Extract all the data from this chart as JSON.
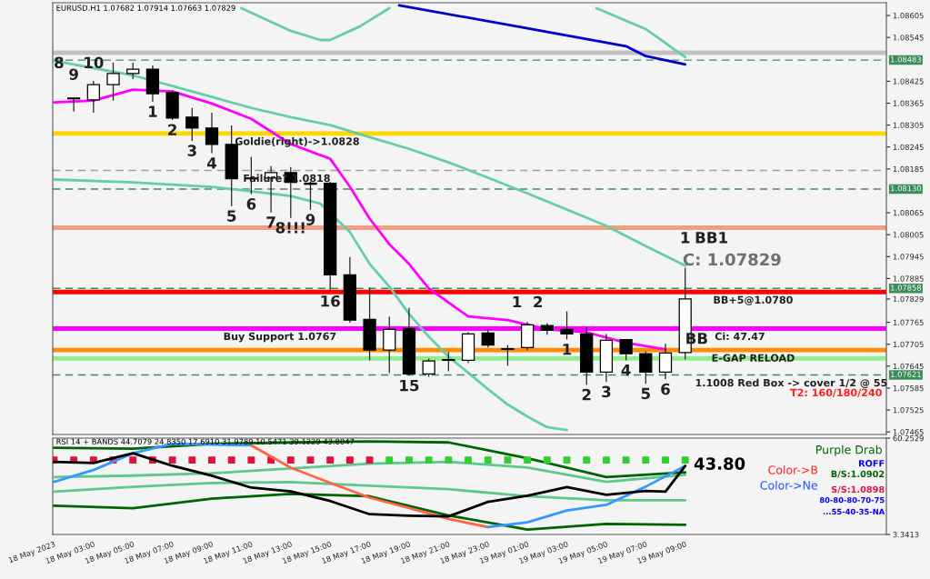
{
  "chart_data": [
    {
      "type": "candlestick",
      "x": [
        "2023-05-18T02:00",
        "2023-05-18T03:00",
        "2023-05-18T04:00",
        "2023-05-18T05:00",
        "2023-05-18T06:00",
        "2023-05-18T07:00",
        "2023-05-18T08:00",
        "2023-05-18T09:00",
        "2023-05-18T10:00",
        "2023-05-18T11:00",
        "2023-05-18T12:00",
        "2023-05-18T13:00",
        "2023-05-18T14:00",
        "2023-05-18T15:00",
        "2023-05-18T16:00",
        "2023-05-18T17:00",
        "2023-05-18T18:00",
        "2023-05-18T19:00",
        "2023-05-18T20:00",
        "2023-05-18T21:00",
        "2023-05-18T22:00",
        "2023-05-18T23:00",
        "2023-05-19T00:00",
        "2023-05-19T01:00",
        "2023-05-19T02:00",
        "2023-05-19T03:00",
        "2023-05-19T04:00",
        "2023-05-19T05:00",
        "2023-05-19T06:00",
        "2023-05-19T07:00",
        "2023-05-19T08:00",
        "2023-05-19T09:00"
      ],
      "ohlc": [
        [
          1.08379,
          1.0838,
          1.08342,
          1.08377
        ],
        [
          1.08374,
          1.08426,
          1.08339,
          1.08416
        ],
        [
          1.08416,
          1.08476,
          1.08372,
          1.08446
        ],
        [
          1.08446,
          1.08476,
          1.08431,
          1.08458
        ],
        [
          1.08458,
          1.08468,
          1.08369,
          1.08391
        ],
        [
          1.08394,
          1.08399,
          1.08319,
          1.08324
        ],
        [
          1.08327,
          1.08352,
          1.08262,
          1.08297
        ],
        [
          1.08297,
          1.08339,
          1.08228,
          1.08252
        ],
        [
          1.08252,
          1.08304,
          1.08083,
          1.08158
        ],
        [
          1.0816,
          1.08218,
          1.08116,
          1.08158
        ],
        [
          1.0816,
          1.08193,
          1.08066,
          1.08175
        ],
        [
          1.08175,
          1.0819,
          1.08051,
          1.08148
        ],
        [
          1.08146,
          1.0815,
          1.08073,
          1.08143
        ],
        [
          1.08146,
          1.0815,
          1.0785,
          1.07895
        ],
        [
          1.07895,
          1.07944,
          1.07764,
          1.07771
        ],
        [
          1.07773,
          1.0786,
          1.07661,
          1.07689
        ],
        [
          1.07689,
          1.0778,
          1.07626,
          1.07746
        ],
        [
          1.07748,
          1.07805,
          1.07619,
          1.07624
        ],
        [
          1.07624,
          1.07666,
          1.07616,
          1.07659
        ],
        [
          1.07661,
          1.07684,
          1.07631,
          1.07663
        ],
        [
          1.07661,
          1.07738,
          1.07654,
          1.07733
        ],
        [
          1.07736,
          1.07746,
          1.07696,
          1.07703
        ],
        [
          1.07691,
          1.07703,
          1.07646,
          1.07693
        ],
        [
          1.07696,
          1.07766,
          1.07689,
          1.07758
        ],
        [
          1.07756,
          1.07763,
          1.07731,
          1.07743
        ],
        [
          1.07746,
          1.07795,
          1.07718,
          1.07733
        ],
        [
          1.07733,
          1.07753,
          1.07594,
          1.07629
        ],
        [
          1.07629,
          1.07733,
          1.07602,
          1.07716
        ],
        [
          1.07718,
          1.07718,
          1.07661,
          1.07679
        ],
        [
          1.07679,
          1.07686,
          1.07597,
          1.07629
        ],
        [
          1.07629,
          1.07706,
          1.07609,
          1.07681
        ],
        [
          1.07682,
          1.07914,
          1.07663,
          1.07829
        ]
      ],
      "series": [
        {
          "type": "line",
          "color": "#ff00ff",
          "x": [
            "2023-05-18T01:00",
            "2023-05-18T03:00",
            "2023-05-18T05:00",
            "2023-05-18T07:00",
            "2023-05-18T09:00",
            "2023-05-18T11:00",
            "2023-05-18T13:00",
            "2023-05-18T15:00",
            "2023-05-18T16:00",
            "2023-05-18T17:00",
            "2023-05-18T18:00",
            "2023-05-18T19:00",
            "2023-05-18T20:00",
            "2023-05-18T22:00",
            "2023-05-19T00:00",
            "2023-05-19T02:00",
            "2023-05-19T04:00",
            "2023-05-19T06:00",
            "2023-05-19T08:00"
          ],
          "values": [
            1.08367,
            1.08372,
            1.08402,
            1.08397,
            1.08364,
            1.08322,
            1.08253,
            1.08213,
            1.08136,
            1.08049,
            1.07979,
            1.07925,
            1.07858,
            1.07781,
            1.07771,
            1.07746,
            1.07738,
            1.07709,
            1.07691
          ]
        },
        {
          "type": "line",
          "color": "#66ccaa",
          "x": [
            "2023-05-18T01:00",
            "2023-05-18T03:00",
            "2023-05-18T05:00",
            "2023-05-18T07:00",
            "2023-05-18T09:00",
            "2023-05-18T11:00",
            "2023-05-18T13:00",
            "2023-05-18T15:00",
            "2023-05-18T17:00",
            "2023-05-18T19:00",
            "2023-05-18T21:00",
            "2023-05-18T23:00",
            "2023-05-19T01:00",
            "2023-05-19T03:00",
            "2023-05-19T05:00",
            "2023-05-19T07:00",
            "2023-05-19T09:00"
          ],
          "values": [
            1.08481,
            1.08461,
            1.08441,
            1.08412,
            1.08382,
            1.08352,
            1.08327,
            1.08305,
            1.08272,
            1.0824,
            1.08203,
            1.08161,
            1.08118,
            1.08074,
            1.08029,
            1.07974,
            1.0792
          ]
        },
        {
          "type": "line",
          "color": "#66ccaa",
          "x": [
            "2023-05-18T01:00",
            "2023-05-18T05:00",
            "2023-05-18T09:00",
            "2023-05-18T13:00",
            "2023-05-18T14:30",
            "2023-05-18T16:00",
            "2023-05-18T17:00",
            "2023-05-18T18:00",
            "2023-05-18T19:00",
            "2023-05-18T20:00",
            "2023-05-18T21:00",
            "2023-05-18T22:00",
            "2023-05-18T23:00",
            "2023-05-19T00:00",
            "2023-05-19T01:00",
            "2023-05-19T02:00",
            "2023-05-19T03:00"
          ],
          "values": [
            1.08156,
            1.08148,
            1.08136,
            1.08111,
            1.0809,
            1.08012,
            1.07925,
            1.07863,
            1.07788,
            1.07726,
            1.07671,
            1.07627,
            1.07582,
            1.0754,
            1.07507,
            1.07478,
            1.0747
          ]
        },
        {
          "type": "line",
          "color": "#66ccaa",
          "x": [
            "2023-05-18T10:30",
            "2023-05-18T13:00",
            "2023-05-18T14:30",
            "2023-05-18T15:00",
            "2023-05-18T16:30",
            "2023-05-18T18:00",
            "2023-05-19T03:00",
            "2023-05-19T04:30",
            "2023-05-19T07:00",
            "2023-05-19T09:00"
          ],
          "values": [
            1.08625,
            1.08563,
            1.08538,
            1.08538,
            1.08575,
            1.08625,
            null,
            1.08625,
            1.08568,
            1.08491
          ]
        },
        {
          "type": "line",
          "color": "#0000cc",
          "x": [
            "2023-05-18T18:30",
            "2023-05-19T01:00",
            "2023-05-19T06:00",
            "2023-05-19T07:00",
            "2023-05-19T09:00"
          ],
          "values": [
            1.08633,
            1.0857,
            1.08521,
            1.08494,
            1.08471
          ]
        }
      ],
      "xlim": [
        "2023-05-18T00:56",
        "2023-05-19T19:12"
      ],
      "ylim": [
        1.07458,
        1.0864
      ],
      "yticks": [
        1.08605,
        1.08545,
        1.08425,
        1.08365,
        1.08305,
        1.08245,
        1.08185,
        1.08065,
        1.08005,
        1.07945,
        1.07885,
        1.07829,
        1.07765,
        1.07705,
        1.07645,
        1.07585,
        1.07525,
        1.07465
      ],
      "tick_labels": "y",
      "ref_lines": [
        {
          "axis": "y",
          "value": 1.08503,
          "color": "#c0c0c0",
          "line_style": "solid"
        },
        {
          "axis": "y",
          "value": 1.08483,
          "label": "1.08483",
          "color": "#3c8c5a",
          "line_style": "dashed"
        },
        {
          "axis": "y",
          "value": 1.08282,
          "color": "#ffd700",
          "line_style": "solid"
        },
        {
          "axis": "y",
          "value": 1.08181,
          "color": "#a0a0a0",
          "line_style": "dashed"
        },
        {
          "axis": "y",
          "value": 1.0813,
          "label": "1.08130",
          "color": "#3c8c5a",
          "line_style": "dashed"
        },
        {
          "axis": "y",
          "value": 1.08024,
          "color": "#f0a080",
          "line_style": "solid"
        },
        {
          "axis": "y",
          "value": 1.07858,
          "label": "1.07858",
          "color": "#3c8c5a",
          "line_style": "dashed"
        },
        {
          "axis": "y",
          "value": 1.07848,
          "color": "#ff0000",
          "line_style": "solid"
        },
        {
          "axis": "y",
          "value": 1.07748,
          "color": "#ff00ff",
          "line_style": "solid"
        },
        {
          "axis": "y",
          "value": 1.07689,
          "color": "#ff8c00",
          "line_style": "solid"
        },
        {
          "axis": "y",
          "value": 1.07666,
          "color": "#90ee90",
          "line_style": "solid"
        },
        {
          "axis": "y",
          "value": 1.07621,
          "label": "1.07621",
          "color": "#3c8c5a",
          "line_style": "dashed"
        }
      ],
      "annotations": [
        "EURUSD.H1 1.07682 1.07914 1.07663 1.07829",
        {
          "text": "8",
          "x": "2023-05-18T01:15",
          "y": 1.08503
        },
        {
          "text": "10",
          "x": "2023-05-18T03:00",
          "y": 1.08503
        },
        {
          "text": "9",
          "x": "2023-05-18T02:00",
          "y": 1.08471
        },
        {
          "text": "1",
          "x": "2023-05-18T06:00",
          "y": 1.08369
        },
        {
          "text": "2",
          "x": "2023-05-18T07:00",
          "y": 1.08319
        },
        {
          "text": "3",
          "x": "2023-05-18T08:00",
          "y": 1.08262
        },
        {
          "text": "4",
          "x": "2023-05-18T09:00",
          "y": 1.08228
        },
        {
          "text": "5",
          "x": "2023-05-18T10:00",
          "y": 1.08083
        },
        {
          "text": "6",
          "x": "2023-05-18T11:00",
          "y": 1.08116
        },
        {
          "text": "7",
          "x": "2023-05-18T12:00",
          "y": 1.08066
        },
        {
          "text": "8!!!",
          "x": "2023-05-18T13:00",
          "y": 1.08051
        },
        {
          "text": "9",
          "x": "2023-05-18T14:00",
          "y": 1.08073
        },
        {
          "text": "Goldie(right)->1.0828",
          "x": "2023-05-18T10:10",
          "y": 1.08282
        },
        {
          "text": "Failure? 1.0818",
          "x": "2023-05-18T10:35",
          "y": 1.08181
        },
        {
          "text": "Buy Support 1.0767",
          "x": "2023-05-18T09:35",
          "y": 1.07748
        },
        {
          "text": "16",
          "x": "2023-05-18T15:00",
          "y": 1.0785
        },
        {
          "text": "15",
          "x": "2023-05-18T19:00",
          "y": 1.07619
        },
        {
          "text": "1  2",
          "x": "2023-05-19T01:00",
          "y": 1.07848
        },
        {
          "text": "1",
          "x": "2023-05-19T03:00",
          "y": 1.07718
        },
        {
          "text": "2",
          "x": "2023-05-19T04:00",
          "y": 1.07594
        },
        {
          "text": "3",
          "x": "2023-05-19T05:00",
          "y": 1.07602
        },
        {
          "text": "4",
          "x": "2023-05-19T06:00",
          "y": 1.07661
        },
        {
          "text": "5",
          "x": "2023-05-19T07:00",
          "y": 1.07597
        },
        {
          "text": "6",
          "x": "2023-05-19T08:00",
          "y": 1.07609
        },
        {
          "text": "1",
          "x": "2023-05-19T09:00",
          "y": 1.08024
        },
        {
          "text": "BB1",
          "x": "2023-05-19T10:20",
          "y": 1.08024
        },
        "C: 1.07829",
        {
          "text": "BB+5@1.0780",
          "x": "2023-05-19T10:25",
          "y": 1.07848
        },
        {
          "text": "Ci: 47.47",
          "x": "2023-05-19T10:30",
          "y": 1.07748
        },
        {
          "text": "BB",
          "x": "2023-05-19T09:35",
          "y": 1.07748
        },
        {
          "text": "E-GAP RELOAD",
          "x": "2023-05-19T10:20",
          "y": 1.07689
        },
        {
          "text": "1.1008 Red Box -> cover 1/2 @ 55",
          "x": "2023-05-19T09:30",
          "y": 1.07621
        },
        "T2: 160/180/240"
      ]
    },
    {
      "type": "line",
      "series": [
        {
          "color": "#006400",
          "x": [
            "2023-05-18T01:00",
            "2023-05-18T05:00",
            "2023-05-18T09:00",
            "2023-05-18T13:00",
            "2023-05-18T17:00",
            "2023-05-18T21:00",
            "2023-05-19T01:00",
            "2023-05-19T05:00",
            "2023-05-19T09:00"
          ],
          "values": [
            54.6,
            54.0,
            56.9,
            57.7,
            58.3,
            57.7,
            48.4,
            37.2,
            40.0
          ]
        },
        {
          "color": "#006400",
          "x": [
            "2023-05-18T01:00",
            "2023-05-18T05:00",
            "2023-05-18T09:00",
            "2023-05-18T13:00",
            "2023-05-18T17:00",
            "2023-05-18T21:00",
            "2023-05-19T01:00",
            "2023-05-19T05:00",
            "2023-05-19T09:00"
          ],
          "values": [
            20.3,
            18.9,
            24.5,
            27.3,
            25.9,
            14.6,
            6.2,
            9.6,
            9.0
          ]
        },
        {
          "color": "#5cc98a",
          "x": [
            "2023-05-18T01:00",
            "2023-05-18T05:00",
            "2023-05-18T09:00",
            "2023-05-18T13:00",
            "2023-05-18T17:00",
            "2023-05-18T21:00",
            "2023-05-19T01:00",
            "2023-05-19T05:00",
            "2023-05-19T09:00"
          ],
          "values": [
            37.2,
            38.1,
            39.5,
            42.3,
            45.1,
            46.2,
            42.9,
            34.4,
            38.6
          ]
        },
        {
          "color": "#5cc98a",
          "x": [
            "2023-05-18T01:00",
            "2023-05-18T05:00",
            "2023-05-18T09:00",
            "2023-05-18T13:00",
            "2023-05-18T17:00",
            "2023-05-18T21:00",
            "2023-05-19T01:00",
            "2023-05-19T05:00",
            "2023-05-19T09:00"
          ],
          "values": [
            28.7,
            31.5,
            33.8,
            34.3,
            32.1,
            30.1,
            25.9,
            23.6,
            23.6
          ]
        },
        {
          "type": "scatter",
          "marker": "square",
          "color": "#dc143c",
          "x": [
            "2023-05-18T01:00",
            "2023-05-18T02:00",
            "2023-05-18T03:00",
            "2023-05-18T04:00",
            "2023-05-18T05:00",
            "2023-05-18T06:00",
            "2023-05-18T07:00",
            "2023-05-18T08:00",
            "2023-05-18T09:00",
            "2023-05-18T10:00",
            "2023-05-18T11:00",
            "2023-05-18T12:00",
            "2023-05-18T13:00",
            "2023-05-18T14:00",
            "2023-05-18T15:00",
            "2023-05-18T16:00",
            "2023-05-18T17:00"
          ],
          "values": [
            47.3,
            47.3,
            47.3,
            47.3,
            47.3,
            47.3,
            47.3,
            47.3,
            47.3,
            47.3,
            47.3,
            47.3,
            47.3,
            47.3,
            47.3,
            47.3,
            47.3
          ]
        },
        {
          "type": "scatter",
          "marker": "square",
          "color": "#32cd32",
          "x": [
            "2023-05-18T18:00",
            "2023-05-18T19:00",
            "2023-05-18T20:00",
            "2023-05-18T21:00",
            "2023-05-18T22:00",
            "2023-05-18T23:00",
            "2023-05-19T00:00",
            "2023-05-19T01:00",
            "2023-05-19T02:00",
            "2023-05-19T03:00",
            "2023-05-19T04:00",
            "2023-05-19T05:00",
            "2023-05-19T06:00",
            "2023-05-19T07:00",
            "2023-05-19T08:00",
            "2023-05-19T09:00"
          ],
          "values": [
            47.3,
            47.3,
            47.3,
            47.3,
            47.3,
            47.3,
            47.3,
            47.3,
            47.3,
            47.3,
            47.3,
            47.3,
            47.3,
            47.3,
            47.3,
            47.3
          ]
        },
        {
          "color": "#3399ff",
          "x": [
            "2023-05-18T01:00",
            "2023-05-18T03:00",
            "2023-05-18T05:00",
            "2023-05-18T07:00",
            "2023-05-18T09:00",
            "2023-05-18T11:00"
          ],
          "values": [
            34.4,
            41.4,
            51.3,
            56.9,
            56.4,
            56.0
          ]
        },
        {
          "color": "#ff6347",
          "x": [
            "2023-05-18T11:00",
            "2023-05-18T13:00",
            "2023-05-18T15:00",
            "2023-05-18T17:00",
            "2023-05-18T19:00",
            "2023-05-18T21:00",
            "2023-05-18T23:00"
          ],
          "values": [
            56.0,
            42.8,
            33.8,
            25.1,
            18.9,
            12.5,
            7.7
          ]
        },
        {
          "color": "#3399ff",
          "x": [
            "2023-05-18T23:00",
            "2023-05-19T01:00",
            "2023-05-19T03:00",
            "2023-05-19T05:00",
            "2023-05-19T07:00",
            "2023-05-19T09:00"
          ],
          "values": [
            7.7,
            10.5,
            17.5,
            20.8,
            31.6,
            43.8
          ]
        },
        {
          "color": "#000000",
          "x": [
            "2023-05-18T01:00",
            "2023-05-18T03:00",
            "2023-05-18T05:00",
            "2023-05-18T07:00",
            "2023-05-18T09:00",
            "2023-05-18T11:00",
            "2023-05-18T13:00",
            "2023-05-18T15:00",
            "2023-05-18T17:00",
            "2023-05-18T19:00",
            "2023-05-18T21:00",
            "2023-05-18T23:00",
            "2023-05-19T01:00",
            "2023-05-19T03:00",
            "2023-05-19T05:00",
            "2023-05-19T07:00",
            "2023-05-19T08:00",
            "2023-05-19T09:00"
          ],
          "values": [
            46.2,
            45.6,
            51.3,
            43.9,
            38.0,
            31.0,
            28.8,
            23.1,
            15.3,
            14.4,
            14.0,
            22.6,
            26.2,
            31.3,
            26.8,
            29.0,
            28.6,
            43.8
          ]
        }
      ],
      "xlim": [
        "2023-05-18T00:56",
        "2023-05-19T19:12"
      ],
      "ylim": [
        3.3413,
        60.2529
      ],
      "yticks": [
        60.2529,
        3.3413
      ],
      "xticks": [
        {
          "value": "2023-05-18T01:00",
          "label": "18 May 2023"
        },
        {
          "value": "2023-05-18T03:00",
          "label": "18 May 03:00"
        },
        {
          "value": "2023-05-18T05:00",
          "label": "18 May 05:00"
        },
        {
          "value": "2023-05-18T07:00",
          "label": "18 May 07:00"
        },
        {
          "value": "2023-05-18T09:00",
          "label": "18 May 09:00"
        },
        {
          "value": "2023-05-18T11:00",
          "label": "18 May 11:00"
        },
        {
          "value": "2023-05-18T13:00",
          "label": "18 May 13:00"
        },
        {
          "value": "2023-05-18T15:00",
          "label": "18 May 15:00"
        },
        {
          "value": "2023-05-18T17:00",
          "label": "18 May 17:00"
        },
        {
          "value": "2023-05-18T19:00",
          "label": "18 May 19:00"
        },
        {
          "value": "2023-05-18T21:00",
          "label": "18 May 21:00"
        },
        {
          "value": "2023-05-18T23:00",
          "label": "18 May 23:00"
        },
        {
          "value": "2023-05-19T01:00",
          "label": "19 May 01:00"
        },
        {
          "value": "2023-05-19T03:00",
          "label": "19 May 03:00"
        },
        {
          "value": "2023-05-19T05:00",
          "label": "19 May 05:00"
        },
        {
          "value": "2023-05-19T07:00",
          "label": "19 May 07:00"
        },
        {
          "value": "2023-05-19T09:00",
          "label": "19 May 09:00"
        }
      ],
      "annotations": [
        "RSI 14 + BANDS 44.7079 24.8350 17.6910 31.9789 10.5471 39.1229 43.8047",
        "43.80",
        "Purple Drab",
        "Color->B",
        "Color->Ne",
        "ROFF",
        "B/S:1.0902",
        "S/S:1.0898",
        "80-80-80-70-75",
        "...55-40-35-NA"
      ]
    }
  ]
}
